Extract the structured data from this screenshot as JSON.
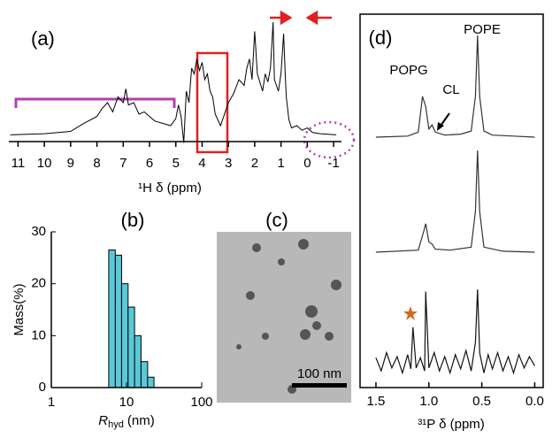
{
  "chart_data": [
    {
      "type": "line",
      "panel_label": "(a)",
      "x_label": "¹H δ (ppm)",
      "xlim": [
        11.35,
        -1.3
      ],
      "xticks": [
        11,
        10,
        9,
        8,
        7,
        6,
        5,
        4,
        3,
        2,
        1,
        0,
        -1
      ],
      "x": [
        11.3,
        10,
        9,
        8.5,
        8,
        7.8,
        7.6,
        7.4,
        7.2,
        7.0,
        6.9,
        6.8,
        6.6,
        6.4,
        6.2,
        6.0,
        5.8,
        5.5,
        5.2,
        5.0,
        4.9,
        4.8,
        4.7,
        4.6,
        4.5,
        4.4,
        4.3,
        4.2,
        4.1,
        4.0,
        3.9,
        3.8,
        3.7,
        3.6,
        3.5,
        3.3,
        3.0,
        2.8,
        2.6,
        2.4,
        2.3,
        2.2,
        2.1,
        2.0,
        1.9,
        1.7,
        1.6,
        1.5,
        1.4,
        1.3,
        1.25,
        1.1,
        1.0,
        0.9,
        0.85,
        0.8,
        0.7,
        0.6,
        0.4,
        0.2,
        0,
        -0.2,
        -0.5,
        -1.1
      ],
      "series": [
        {
          "color": "#000000",
          "values": [
            2,
            3,
            5,
            12,
            18,
            25,
            30,
            22,
            35,
            30,
            42,
            28,
            30,
            20,
            22,
            18,
            14,
            12,
            10,
            16,
            28,
            18,
            -5,
            40,
            30,
            60,
            55,
            68,
            58,
            65,
            50,
            55,
            40,
            35,
            20,
            10,
            30,
            38,
            50,
            45,
            60,
            68,
            50,
            92,
            55,
            40,
            55,
            48,
            60,
            100,
            50,
            40,
            55,
            90,
            60,
            35,
            15,
            8,
            10,
            6,
            8,
            4,
            3,
            2
          ]
        }
      ]
    },
    {
      "type": "histogram",
      "panel_label": "(b)",
      "x_label_symbol": "R",
      "x_label_subscript": "hyd",
      "x_label_unit": "(nm)",
      "y_label": "Mass(%)",
      "bins": [
        5.8,
        7.1,
        8.6,
        10.5,
        12.8,
        15.6,
        19.1,
        23.2
      ],
      "values": [
        26.5,
        25.5,
        20,
        15.5,
        10,
        5,
        2
      ],
      "color": "#5bc8d8",
      "log_x": true,
      "xlim": [
        1,
        100
      ],
      "xticks": [
        1,
        10,
        100
      ],
      "ylim": [
        0,
        30
      ],
      "yticks": [
        0,
        10,
        20,
        30
      ]
    },
    {
      "type": "image",
      "panel_label": "(c)",
      "scale_bar_label": "100 nm"
    },
    {
      "type": "stacked-spectra",
      "panel_label": "(d)",
      "x_label": "³¹P δ (ppm)",
      "xlim": [
        1.65,
        -0.08
      ],
      "xticks": [
        1.5,
        {
          "value": 1,
          "label": "1.0"
        },
        0.5,
        {
          "value": 0,
          "label": "0.0"
        }
      ],
      "annotations": [
        "POPE",
        "POPG",
        "CL"
      ],
      "series": [
        {
          "color": "#333333",
          "x": [
            1.5,
            1.2,
            1.1,
            1.06,
            1.03,
            1.0,
            0.97,
            0.94,
            0.85,
            0.7,
            0.6,
            0.56,
            0.54,
            0.52,
            0.48,
            0.4,
            0.2,
            0
          ],
          "values": [
            0,
            1,
            5,
            40,
            30,
            8,
            12,
            5,
            2,
            3,
            6,
            40,
            100,
            40,
            6,
            2,
            1,
            0
          ]
        },
        {
          "color": "#333333",
          "x": [
            1.5,
            1.1,
            1.05,
            1.03,
            1.0,
            0.97,
            0.94,
            0.8,
            0.6,
            0.56,
            0.54,
            0.52,
            0.48,
            0.3,
            0
          ],
          "values": [
            0,
            2,
            20,
            28,
            10,
            8,
            3,
            2,
            5,
            40,
            100,
            40,
            5,
            1,
            0
          ]
        },
        {
          "color": "#111111",
          "x": [
            1.5,
            1.45,
            1.4,
            1.35,
            1.3,
            1.25,
            1.2,
            1.17,
            1.15,
            1.12,
            1.08,
            1.04,
            1.03,
            1.0,
            0.95,
            0.9,
            0.85,
            0.8,
            0.75,
            0.7,
            0.65,
            0.6,
            0.56,
            0.54,
            0.52,
            0.48,
            0.44,
            0.4,
            0.35,
            0.3,
            0.25,
            0.2,
            0.15,
            0.1,
            0.05,
            0
          ],
          "values": [
            5,
            -8,
            10,
            -5,
            6,
            -10,
            8,
            -6,
            35,
            -5,
            5,
            -8,
            70,
            -5,
            10,
            -8,
            6,
            -10,
            8,
            -6,
            12,
            -8,
            20,
            72,
            10,
            -10,
            8,
            -6,
            10,
            -8,
            6,
            -10,
            8,
            -5,
            6,
            -3
          ]
        }
      ]
    }
  ]
}
